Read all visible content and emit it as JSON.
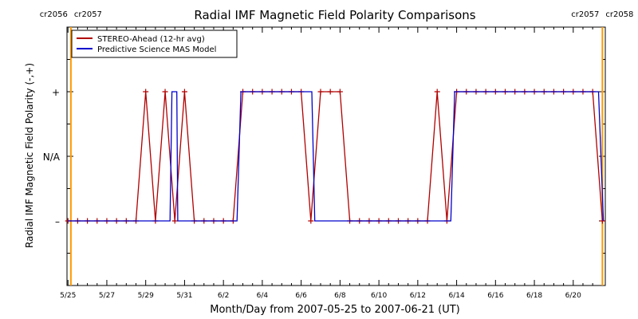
{
  "chart_data": {
    "type": "line",
    "title": "Radial IMF Magnetic Field Polarity Comparisons",
    "xlabel": "Month/Day from 2007-05-25 to 2007-06-21 (UT)",
    "ylabel": "Radial IMF Magnetic Field Polarity (-,+)",
    "xlim": [
      -0.05,
      27.65
    ],
    "ylim": [
      -2,
      2
    ],
    "x_ticks": [
      {
        "x": 0,
        "label": "5/25"
      },
      {
        "x": 2,
        "label": "5/27"
      },
      {
        "x": 4,
        "label": "5/29"
      },
      {
        "x": 6,
        "label": "5/31"
      },
      {
        "x": 8,
        "label": "6/2"
      },
      {
        "x": 10,
        "label": "6/4"
      },
      {
        "x": 12,
        "label": "6/6"
      },
      {
        "x": 14,
        "label": "6/8"
      },
      {
        "x": 16,
        "label": "6/10"
      },
      {
        "x": 18,
        "label": "6/12"
      },
      {
        "x": 20,
        "label": "6/14"
      },
      {
        "x": 22,
        "label": "6/16"
      },
      {
        "x": 24,
        "label": "6/18"
      },
      {
        "x": 26,
        "label": "6/20"
      }
    ],
    "y_ticks": [
      {
        "y": 1,
        "label": "+"
      },
      {
        "y": 0,
        "label": "N/A"
      },
      {
        "y": -1,
        "label": "–"
      }
    ],
    "carrington_markers": [
      {
        "x": 0.15,
        "left_label": "cr2056",
        "right_label": "cr2057",
        "color": "#ff9900"
      },
      {
        "x": 27.5,
        "left_label": "cr2057",
        "right_label": "cr2058",
        "color": "#ff9900"
      }
    ],
    "legend_position": "top-left",
    "series": [
      {
        "name": "STEREO-Ahead (12-hr avg)",
        "color": "#b00000",
        "marker": "plus",
        "points": [
          [
            0.0,
            -1
          ],
          [
            0.5,
            -1
          ],
          [
            1.0,
            -1
          ],
          [
            1.5,
            -1
          ],
          [
            2.0,
            -1
          ],
          [
            2.5,
            -1
          ],
          [
            3.0,
            -1
          ],
          [
            3.5,
            -1
          ],
          [
            4.0,
            1
          ],
          [
            4.5,
            -1
          ],
          [
            5.0,
            1
          ],
          [
            5.5,
            -1
          ],
          [
            6.0,
            1
          ],
          [
            6.5,
            -1
          ],
          [
            7.0,
            -1
          ],
          [
            7.5,
            -1
          ],
          [
            8.0,
            -1
          ],
          [
            8.5,
            -1
          ],
          [
            9.0,
            1
          ],
          [
            9.5,
            1
          ],
          [
            10.0,
            1
          ],
          [
            10.5,
            1
          ],
          [
            11.0,
            1
          ],
          [
            11.5,
            1
          ],
          [
            12.0,
            1
          ],
          [
            12.5,
            -1
          ],
          [
            13.0,
            1
          ],
          [
            13.5,
            1
          ],
          [
            14.0,
            1
          ],
          [
            14.5,
            -1
          ],
          [
            15.0,
            -1
          ],
          [
            15.5,
            -1
          ],
          [
            16.0,
            -1
          ],
          [
            16.5,
            -1
          ],
          [
            17.0,
            -1
          ],
          [
            17.5,
            -1
          ],
          [
            18.0,
            -1
          ],
          [
            18.5,
            -1
          ],
          [
            19.0,
            1
          ],
          [
            19.5,
            -1
          ],
          [
            20.0,
            1
          ],
          [
            20.5,
            1
          ],
          [
            21.0,
            1
          ],
          [
            21.5,
            1
          ],
          [
            22.0,
            1
          ],
          [
            22.5,
            1
          ],
          [
            23.0,
            1
          ],
          [
            23.5,
            1
          ],
          [
            24.0,
            1
          ],
          [
            24.5,
            1
          ],
          [
            25.0,
            1
          ],
          [
            25.5,
            1
          ],
          [
            26.0,
            1
          ],
          [
            26.5,
            1
          ],
          [
            27.0,
            1
          ],
          [
            27.5,
            -1
          ]
        ]
      },
      {
        "name": "Predictive Science MAS Model",
        "color": "#0000cc",
        "marker": "none",
        "points": [
          [
            0.0,
            -1
          ],
          [
            5.25,
            -1
          ],
          [
            5.35,
            1
          ],
          [
            5.6,
            1
          ],
          [
            5.65,
            -1
          ],
          [
            8.7,
            -1
          ],
          [
            8.9,
            1
          ],
          [
            12.55,
            1
          ],
          [
            12.7,
            -1
          ],
          [
            19.7,
            -1
          ],
          [
            19.9,
            1
          ],
          [
            27.3,
            1
          ],
          [
            27.55,
            -1
          ]
        ]
      }
    ]
  }
}
